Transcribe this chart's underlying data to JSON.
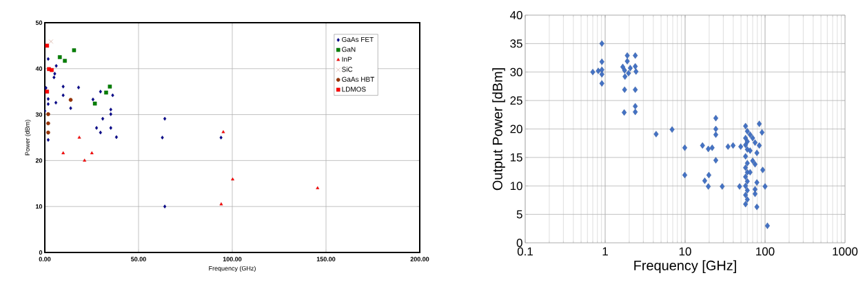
{
  "chart_data": [
    {
      "type": "scatter",
      "xlabel": "Frequency (GHz)",
      "ylabel": "Power (dBm)",
      "xlim": [
        0,
        200
      ],
      "ylim": [
        0,
        50
      ],
      "xticks": [
        {
          "value": 0,
          "label": "0.00"
        },
        {
          "value": 50,
          "label": "50.00"
        },
        {
          "value": 100,
          "label": "100.00"
        },
        {
          "value": 150,
          "label": "150.00"
        },
        {
          "value": 200,
          "label": "200.00"
        }
      ],
      "yticks": [
        0,
        10,
        20,
        30,
        40,
        50
      ],
      "grid": true,
      "legend": "top right",
      "series": [
        {
          "name": "GaAs FET",
          "color": "#00008b",
          "marker": "diamond",
          "x": [
            1.8,
            6.1,
            5.3,
            4.9,
            0.6,
            9.8,
            18,
            9.8,
            1.8,
            1.8,
            5.9,
            13.8,
            0,
            25.7,
            29.7,
            36.2,
            35.2,
            35.2,
            30.9,
            27.6,
            29.7,
            35.2,
            38.2,
            1.8,
            64,
            62.7,
            94,
            64
          ],
          "values": [
            42.1,
            40.6,
            38.9,
            38.1,
            35.8,
            36.1,
            35.9,
            34.2,
            33.4,
            32.3,
            32.6,
            31.4,
            30.8,
            33.3,
            35,
            34.2,
            31.1,
            30.1,
            29.1,
            27.1,
            26.1,
            27.1,
            25.1,
            24.5,
            29.1,
            25,
            25,
            10
          ]
        },
        {
          "name": "GaN",
          "color": "#008000",
          "marker": "square",
          "x": [
            8,
            10.7,
            15.6,
            34.7,
            32.7,
            26.7
          ],
          "values": [
            42.5,
            41.7,
            44,
            36.1,
            34.8,
            32.4
          ]
        },
        {
          "name": "InP",
          "color": "#ff0000",
          "marker": "triangle",
          "x": [
            9.8,
            18.4,
            21.2,
            25.1,
            95.2,
            100.2,
            94.1,
            145.5
          ],
          "values": [
            21.6,
            25,
            20,
            21.6,
            26.2,
            15.9,
            10.5,
            14
          ]
        },
        {
          "name": "SiC",
          "color": "#b06a50",
          "marker": "cross",
          "x": [
            3.3
          ],
          "values": [
            45.9
          ]
        },
        {
          "name": "GaAs HBT",
          "color": "#993300",
          "marker": "circle",
          "x": [
            13.8,
            1.8,
            1.8,
            1.8
          ],
          "values": [
            33.2,
            30.1,
            28.1,
            26.1
          ]
        },
        {
          "name": "LDMOS",
          "color": "#ff0000",
          "marker": "square",
          "x": [
            1.2,
            2.2,
            3.7,
            1.2
          ],
          "values": [
            45,
            39.9,
            39.7,
            35
          ]
        }
      ]
    },
    {
      "type": "scatter",
      "xlabel": "Frequency [GHz]",
      "ylabel": "Output Power [dBm]",
      "log": "x",
      "xlim": [
        0.1,
        1000
      ],
      "ylim": [
        0,
        40
      ],
      "xticks": [
        0.1,
        1,
        10,
        100,
        1000
      ],
      "yticks": [
        0,
        5,
        10,
        15,
        20,
        25,
        30,
        35,
        40
      ],
      "grid": true,
      "marker": "diamond",
      "series": [
        {
          "color": "#4472c4",
          "x": [
            0.91,
            0.91,
            0.7,
            0.82,
            0.91,
            0.91,
            0.91,
            1.89,
            2.38,
            1.89,
            1.66,
            1.75,
            2.06,
            1.96,
            1.77,
            2.38,
            2.43,
            1.75,
            2.38,
            2.38,
            2.38,
            1.73,
            4.34,
            6.87,
            9.9,
            9.9,
            24.2,
            24.2,
            24.2,
            16.5,
            19.5,
            21.8,
            34.4,
            39.8,
            24.2,
            19.8,
            17.6,
            19.5,
            29.1,
            48,
            49.6,
            57,
            60,
            57,
            60,
            57,
            60,
            57,
            60,
            57,
            60,
            57,
            60,
            57,
            60,
            57,
            60,
            57,
            65,
            70,
            75,
            65,
            79,
            70,
            75,
            65,
            79,
            75,
            75,
            79,
            84.7,
            91.6,
            84.7,
            93.5,
            100,
            107
          ],
          "values": [
            35,
            31.8,
            30,
            30.2,
            30.4,
            29.6,
            28,
            32.9,
            32.9,
            31.9,
            30.9,
            30.3,
            30.7,
            29.8,
            29.2,
            31,
            30.1,
            26.9,
            26.9,
            24,
            23,
            22.9,
            19.1,
            19.9,
            16.7,
            11.9,
            21.9,
            20,
            19,
            17.1,
            16.5,
            16.7,
            16.9,
            17.1,
            14.5,
            11.9,
            10.9,
            9.9,
            9.9,
            9.9,
            16.9,
            20.5,
            19.6,
            18.4,
            17.8,
            17.2,
            16.4,
            15.2,
            14,
            13.2,
            12.4,
            11.6,
            10.8,
            10,
            9.2,
            8.4,
            7.6,
            6.8,
            19,
            18.4,
            17.6,
            16.2,
            15.8,
            14.4,
            13.8,
            12.4,
            10.6,
            9.4,
            8.6,
            6.3,
            20.9,
            19.4,
            17.1,
            12.8,
            9.9,
            3
          ]
        }
      ]
    }
  ]
}
